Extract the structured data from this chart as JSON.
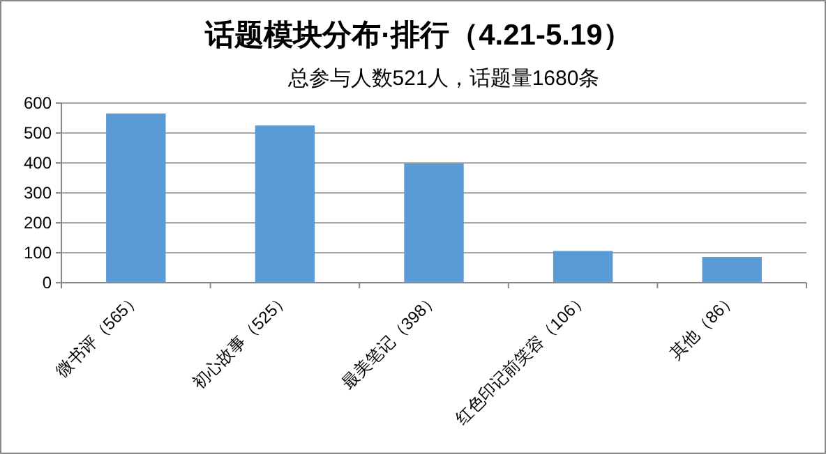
{
  "chart_data": {
    "type": "bar",
    "title": "话题模块分布·排行（4.21-5.19）",
    "subtitle": "总参与人数521人，话题量1680条",
    "categories": [
      "微书评（565）",
      "初心故事（525）",
      "最美笔记（398）",
      "红色印记前笑容（106）",
      "其他（86）"
    ],
    "values": [
      565,
      525,
      398,
      106,
      86
    ],
    "color": "#5b9bd5",
    "ylim": [
      0,
      600
    ],
    "yticks": [
      0,
      100,
      200,
      300,
      400,
      500,
      600
    ],
    "grid": "y"
  }
}
